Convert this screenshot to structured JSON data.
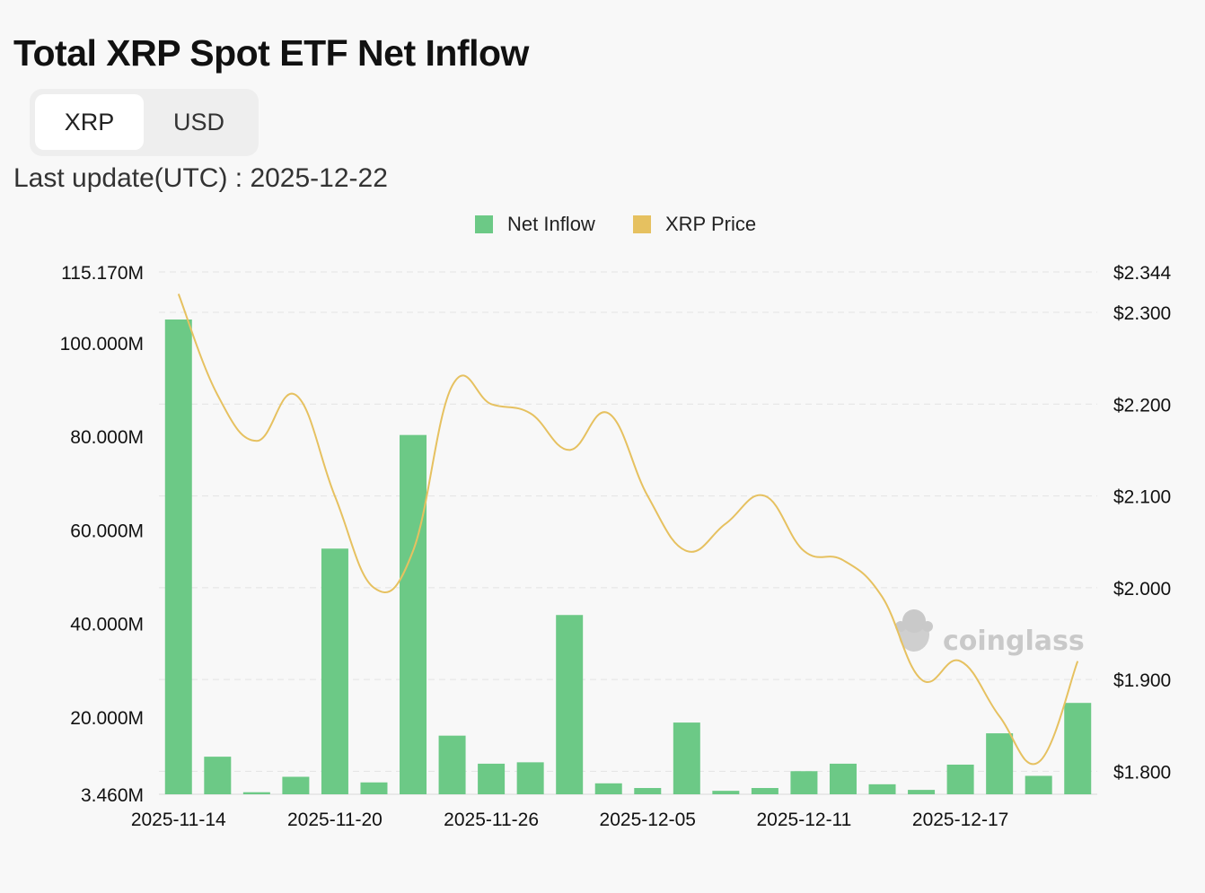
{
  "title": "Total XRP Spot ETF Net Inflow",
  "toggle": {
    "options": [
      "XRP",
      "USD"
    ],
    "selected": "XRP"
  },
  "last_update": "Last update(UTC) : 2025-12-22",
  "watermark": "coinglass",
  "colors": {
    "inflow": "#6cc986",
    "price": "#e6c160",
    "grid": "#e3e3e3"
  },
  "chart_data": {
    "type": "bar",
    "legend_position": "top-center",
    "series": [
      {
        "name": "Net Inflow",
        "type": "bar",
        "axis": "left",
        "values": [
          105.0,
          11.5,
          3.9,
          7.2,
          56.0,
          6.0,
          80.3,
          16.0,
          10.0,
          10.3,
          41.8,
          5.8,
          4.8,
          18.8,
          4.2,
          4.8,
          8.4,
          10.0,
          5.6,
          4.4,
          9.8,
          16.5,
          7.4,
          23.0
        ]
      },
      {
        "name": "XRP Price",
        "type": "line",
        "axis": "right",
        "values": [
          2.32,
          2.21,
          2.16,
          2.21,
          2.1,
          2.0,
          2.04,
          2.22,
          2.2,
          2.19,
          2.15,
          2.19,
          2.1,
          2.04,
          2.07,
          2.1,
          2.04,
          2.03,
          1.99,
          1.9,
          1.92,
          1.86,
          1.81,
          1.92
        ]
      }
    ],
    "x_tick_labels": [
      "2025-11-14",
      "2025-11-20",
      "2025-11-26",
      "2025-12-05",
      "2025-12-11",
      "2025-12-17"
    ],
    "x_tick_indices": [
      0,
      4,
      8,
      12,
      16,
      20
    ],
    "y_left": {
      "ylim": [
        3.46,
        115.17
      ],
      "tick_values": [
        3.46,
        20,
        40,
        60,
        80,
        100,
        115.17
      ],
      "tick_labels": [
        "3.460M",
        "20.000M",
        "40.000M",
        "60.000M",
        "80.000M",
        "100.000M",
        "115.170M"
      ]
    },
    "y_right": {
      "ylim": [
        1.775,
        2.344
      ],
      "tick_values": [
        1.8,
        1.9,
        2.0,
        2.1,
        2.2,
        2.3,
        2.344
      ],
      "tick_labels": [
        "$1.800",
        "$1.900",
        "$2.000",
        "$2.100",
        "$2.200",
        "$2.300",
        "$2.344"
      ]
    },
    "grid": true
  }
}
